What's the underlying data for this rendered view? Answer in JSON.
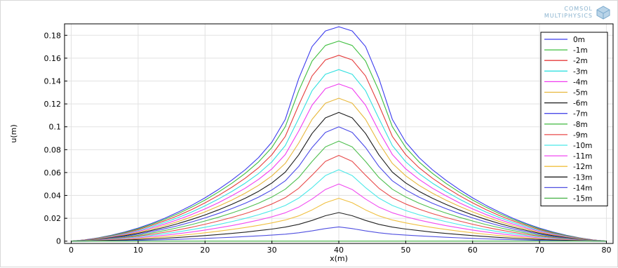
{
  "logo": {
    "line1": "COMSOL",
    "line2": "MULTIPHYSICS"
  },
  "chart_data": {
    "type": "line",
    "title": "",
    "xlabel": "x(m)",
    "ylabel": "u(m)",
    "xlim": [
      -1,
      81
    ],
    "ylim": [
      -0.002,
      0.19
    ],
    "xticks": [
      0,
      10,
      20,
      30,
      40,
      50,
      60,
      70,
      80
    ],
    "yticks": [
      0,
      0.02,
      0.04,
      0.06,
      0.08,
      0.1,
      0.12,
      0.14,
      0.16,
      0.18
    ],
    "ytick_labels": [
      "0",
      "0.02",
      "0.04",
      "0.06",
      "0.08",
      "0.1",
      "0.12",
      "0.14",
      "0.16",
      "0.18"
    ],
    "grid": true,
    "legend_position": "top-right",
    "x": [
      0,
      2,
      4,
      6,
      8,
      10,
      12,
      14,
      16,
      18,
      20,
      22,
      24,
      26,
      28,
      30,
      32,
      34,
      36,
      38,
      40,
      42,
      44,
      46,
      48,
      50,
      52,
      54,
      56,
      58,
      60,
      62,
      64,
      66,
      68,
      70,
      72,
      74,
      76,
      78,
      80
    ],
    "series": [
      {
        "name": "0m",
        "color": "#3a3aee",
        "values": [
          0,
          0.0011,
          0.0029,
          0.0052,
          0.008,
          0.0114,
          0.0155,
          0.0201,
          0.0254,
          0.0313,
          0.0379,
          0.0452,
          0.0533,
          0.0624,
          0.0731,
          0.0866,
          0.1065,
          0.1421,
          0.1702,
          0.1838,
          0.1875,
          0.1838,
          0.1702,
          0.1421,
          0.1065,
          0.0866,
          0.0731,
          0.0624,
          0.0533,
          0.0452,
          0.0379,
          0.0313,
          0.0254,
          0.0201,
          0.0155,
          0.0114,
          0.008,
          0.0052,
          0.0029,
          0.0011,
          0
        ]
      },
      {
        "name": "-1m",
        "color": "#3fbf3f",
        "values": [
          0,
          0.001,
          0.0027,
          0.0049,
          0.0076,
          0.0108,
          0.0147,
          0.0191,
          0.0241,
          0.0297,
          0.036,
          0.0429,
          0.0506,
          0.0592,
          0.0693,
          0.0819,
          0.1001,
          0.1314,
          0.1575,
          0.1711,
          0.175,
          0.1711,
          0.1575,
          0.1314,
          0.1001,
          0.0819,
          0.0693,
          0.0592,
          0.0506,
          0.0429,
          0.036,
          0.0297,
          0.0241,
          0.0191,
          0.0147,
          0.0108,
          0.0076,
          0.0049,
          0.0027,
          0.001,
          0
        ]
      },
      {
        "name": "-2m",
        "color": "#e63c3c",
        "values": [
          0,
          0.001,
          0.0025,
          0.0045,
          0.007,
          0.0101,
          0.0137,
          0.0178,
          0.0224,
          0.0276,
          0.0335,
          0.0399,
          0.0471,
          0.055,
          0.0642,
          0.0756,
          0.0916,
          0.1189,
          0.1445,
          0.1585,
          0.1625,
          0.1585,
          0.1445,
          0.1189,
          0.0916,
          0.0756,
          0.0642,
          0.055,
          0.0471,
          0.0399,
          0.0335,
          0.0276,
          0.0224,
          0.0178,
          0.0137,
          0.0101,
          0.007,
          0.0045,
          0.0025,
          0.001,
          0
        ]
      },
      {
        "name": "-3m",
        "color": "#33e0e0",
        "values": [
          0,
          0.0009,
          0.0023,
          0.0042,
          0.0065,
          0.0093,
          0.0126,
          0.0164,
          0.0207,
          0.0255,
          0.0309,
          0.0368,
          0.0434,
          0.0507,
          0.0591,
          0.0694,
          0.0836,
          0.1072,
          0.1316,
          0.1459,
          0.15,
          0.1459,
          0.1316,
          0.1072,
          0.0836,
          0.0694,
          0.0591,
          0.0507,
          0.0434,
          0.0368,
          0.0309,
          0.0255,
          0.0207,
          0.0164,
          0.0126,
          0.0093,
          0.0065,
          0.0042,
          0.0023,
          0.0009,
          0
        ]
      },
      {
        "name": "-4m",
        "color": "#f03cf0",
        "values": [
          0,
          0.0008,
          0.0021,
          0.0038,
          0.0059,
          0.0085,
          0.0115,
          0.015,
          0.0189,
          0.0233,
          0.0282,
          0.0336,
          0.0397,
          0.0463,
          0.054,
          0.0632,
          0.0758,
          0.0962,
          0.1189,
          0.1333,
          0.1375,
          0.1333,
          0.1189,
          0.0962,
          0.0758,
          0.0632,
          0.054,
          0.0463,
          0.0397,
          0.0336,
          0.0282,
          0.0233,
          0.0189,
          0.015,
          0.0115,
          0.0085,
          0.0059,
          0.0038,
          0.0021,
          0.0008,
          0
        ]
      },
      {
        "name": "-5m",
        "color": "#e8b83c",
        "values": [
          0,
          0.0007,
          0.0019,
          0.0035,
          0.0054,
          0.0077,
          0.0105,
          0.0136,
          0.0172,
          0.0212,
          0.0256,
          0.0305,
          0.0359,
          0.0419,
          0.0488,
          0.0571,
          0.068,
          0.0857,
          0.1065,
          0.1206,
          0.125,
          0.1206,
          0.1065,
          0.0857,
          0.068,
          0.0571,
          0.0488,
          0.0419,
          0.0359,
          0.0305,
          0.0256,
          0.0212,
          0.0172,
          0.0136,
          0.0105,
          0.0077,
          0.0054,
          0.0035,
          0.0019,
          0.0007,
          0
        ]
      },
      {
        "name": "-6m",
        "color": "#1a1a1a",
        "values": [
          0,
          0.0007,
          0.0017,
          0.0031,
          0.0048,
          0.0069,
          0.0094,
          0.0122,
          0.0154,
          0.019,
          0.0229,
          0.0273,
          0.0322,
          0.0375,
          0.0436,
          0.0509,
          0.0604,
          0.0754,
          0.0942,
          0.1078,
          0.1125,
          0.1078,
          0.0942,
          0.0754,
          0.0604,
          0.0509,
          0.0436,
          0.0375,
          0.0322,
          0.0273,
          0.0229,
          0.019,
          0.0154,
          0.0122,
          0.0094,
          0.0069,
          0.0048,
          0.0031,
          0.0017,
          0.0007,
          0
        ]
      },
      {
        "name": "-7m",
        "color": "#4a4ae8",
        "values": [
          0,
          0.0006,
          0.0015,
          0.0027,
          0.0042,
          0.0061,
          0.0083,
          0.0108,
          0.0136,
          0.0168,
          0.0203,
          0.0242,
          0.0284,
          0.0331,
          0.0385,
          0.0448,
          0.0528,
          0.0653,
          0.0819,
          0.0951,
          0.1,
          0.0951,
          0.0819,
          0.0653,
          0.0528,
          0.0448,
          0.0385,
          0.0331,
          0.0284,
          0.0242,
          0.0203,
          0.0168,
          0.0136,
          0.0108,
          0.0083,
          0.0061,
          0.0042,
          0.0027,
          0.0015,
          0.0006,
          0
        ]
      },
      {
        "name": "-8m",
        "color": "#4fbf4f",
        "values": [
          0,
          0.0005,
          0.0013,
          0.0023,
          0.0036,
          0.0052,
          0.0071,
          0.0093,
          0.0118,
          0.0145,
          0.0176,
          0.0209,
          0.0246,
          0.0286,
          0.0332,
          0.0386,
          0.0454,
          0.0556,
          0.0697,
          0.0824,
          0.0875,
          0.0824,
          0.0697,
          0.0556,
          0.0454,
          0.0386,
          0.0332,
          0.0286,
          0.0246,
          0.0209,
          0.0176,
          0.0145,
          0.0118,
          0.0093,
          0.0071,
          0.0052,
          0.0036,
          0.0023,
          0.0013,
          0.0005,
          0
        ]
      },
      {
        "name": "-9m",
        "color": "#e84a4a",
        "values": [
          0,
          0.0004,
          0.0011,
          0.002,
          0.0031,
          0.0044,
          0.006,
          0.0078,
          0.0099,
          0.0122,
          0.0148,
          0.0176,
          0.0207,
          0.0241,
          0.028,
          0.0325,
          0.038,
          0.0462,
          0.0577,
          0.0698,
          0.075,
          0.0698,
          0.0577,
          0.0462,
          0.038,
          0.0325,
          0.028,
          0.0241,
          0.0207,
          0.0176,
          0.0148,
          0.0122,
          0.0099,
          0.0078,
          0.006,
          0.0044,
          0.0031,
          0.002,
          0.0011,
          0.0004,
          0
        ]
      },
      {
        "name": "-10m",
        "color": "#4ae8e8",
        "values": [
          0,
          0.0004,
          0.0009,
          0.0016,
          0.0026,
          0.0037,
          0.005,
          0.0065,
          0.0082,
          0.0101,
          0.0122,
          0.0145,
          0.0171,
          0.0199,
          0.0231,
          0.0268,
          0.0312,
          0.0376,
          0.0468,
          0.0573,
          0.0625,
          0.0573,
          0.0468,
          0.0376,
          0.0312,
          0.0268,
          0.0231,
          0.0199,
          0.0171,
          0.0145,
          0.0122,
          0.0101,
          0.0082,
          0.0065,
          0.005,
          0.0037,
          0.0026,
          0.0016,
          0.0009,
          0.0004,
          0
        ]
      },
      {
        "name": "-11m",
        "color": "#f04af0",
        "values": [
          0,
          0.0003,
          0.0007,
          0.0013,
          0.002,
          0.0029,
          0.004,
          0.0052,
          0.0065,
          0.008,
          0.0097,
          0.0116,
          0.0136,
          0.0159,
          0.0184,
          0.0213,
          0.0248,
          0.0297,
          0.0368,
          0.0452,
          0.05,
          0.0452,
          0.0368,
          0.0297,
          0.0248,
          0.0213,
          0.0184,
          0.0159,
          0.0136,
          0.0116,
          0.0097,
          0.008,
          0.0065,
          0.0052,
          0.004,
          0.0029,
          0.002,
          0.0013,
          0.0007,
          0.0003,
          0
        ]
      },
      {
        "name": "-12m",
        "color": "#f0c040",
        "values": [
          0,
          0.0002,
          0.0005,
          0.001,
          0.0015,
          0.0022,
          0.003,
          0.0039,
          0.0049,
          0.006,
          0.0073,
          0.0087,
          0.0102,
          0.0119,
          0.0138,
          0.016,
          0.0185,
          0.0221,
          0.0273,
          0.0336,
          0.0375,
          0.0336,
          0.0273,
          0.0221,
          0.0185,
          0.016,
          0.0138,
          0.0119,
          0.0102,
          0.0087,
          0.0073,
          0.006,
          0.0049,
          0.0039,
          0.003,
          0.0022,
          0.0015,
          0.001,
          0.0005,
          0.0002,
          0
        ]
      },
      {
        "name": "-13m",
        "color": "#222222",
        "values": [
          0,
          0.0001,
          0.0004,
          0.0007,
          0.001,
          0.0015,
          0.002,
          0.0026,
          0.0033,
          0.004,
          0.0049,
          0.0058,
          0.0068,
          0.0079,
          0.0092,
          0.0106,
          0.0123,
          0.0147,
          0.0181,
          0.0222,
          0.025,
          0.0222,
          0.0181,
          0.0147,
          0.0123,
          0.0106,
          0.0092,
          0.0079,
          0.0068,
          0.0058,
          0.0049,
          0.004,
          0.0033,
          0.0026,
          0.002,
          0.0015,
          0.001,
          0.0007,
          0.0004,
          0.0001,
          0
        ]
      },
      {
        "name": "-14m",
        "color": "#5050e0",
        "values": [
          0,
          0.0001,
          0.0002,
          0.0003,
          0.0005,
          0.0007,
          0.001,
          0.0013,
          0.0016,
          0.002,
          0.0024,
          0.0029,
          0.0034,
          0.004,
          0.0046,
          0.0053,
          0.0061,
          0.0073,
          0.009,
          0.011,
          0.0125,
          0.011,
          0.009,
          0.0073,
          0.0061,
          0.0053,
          0.0046,
          0.004,
          0.0034,
          0.0029,
          0.0024,
          0.002,
          0.0016,
          0.0013,
          0.001,
          0.0007,
          0.0005,
          0.0003,
          0.0002,
          0.0001,
          0
        ]
      },
      {
        "name": "-15m",
        "color": "#40b040",
        "values": [
          0,
          0,
          0,
          0,
          0,
          0,
          0,
          0,
          0,
          0,
          0,
          0,
          0,
          0,
          0,
          0,
          0,
          0,
          0,
          0,
          0,
          0,
          0,
          0,
          0,
          0,
          0,
          0,
          0,
          0,
          0,
          0,
          0,
          0,
          0,
          0,
          0,
          0,
          0,
          0,
          0
        ]
      }
    ]
  }
}
